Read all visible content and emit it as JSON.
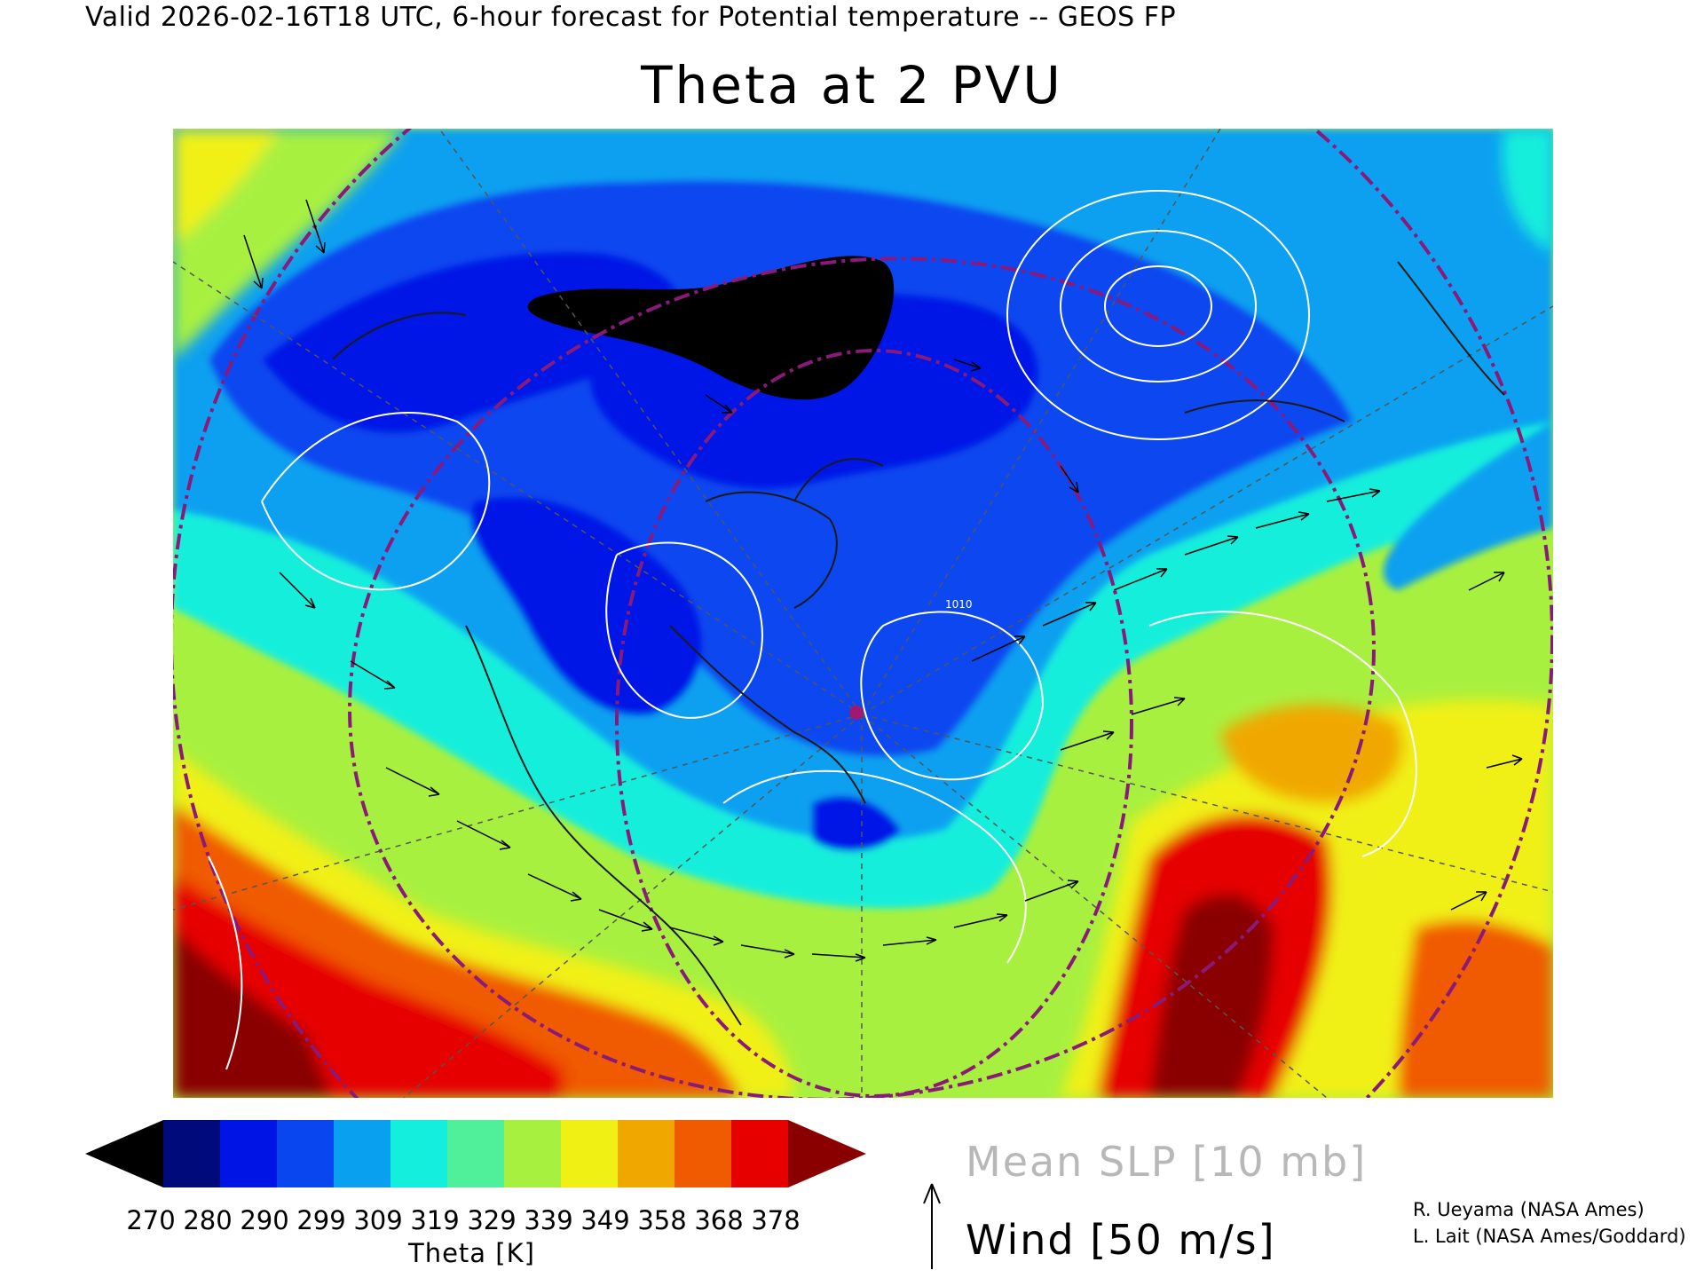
{
  "header": {
    "valid_line": "Valid 2026-02-16T18 UTC, 6-hour forecast for Potential temperature -- GEOS FP",
    "title": "Theta at 2 PVU"
  },
  "colorbar": {
    "labels": [
      "270",
      "280",
      "290",
      "299",
      "309",
      "319",
      "329",
      "339",
      "349",
      "358",
      "368",
      "378"
    ],
    "unit_label": "Theta [K]",
    "colors": [
      "#000000",
      "#000a7a",
      "#0014e6",
      "#0a46f0",
      "#0aa0f0",
      "#14eedc",
      "#50f09a",
      "#a8f040",
      "#f0f014",
      "#f0a800",
      "#f05a00",
      "#e60000",
      "#8a0000"
    ]
  },
  "legend": {
    "slp_label": "Mean SLP [10 mb]",
    "wind_label": "Wind [50 m/s]"
  },
  "credits": {
    "line1": "R. Ueyama (NASA Ames)",
    "line2": "L. Lait (NASA Ames/Goddard)"
  },
  "map": {
    "contour_label": "1010",
    "marker_color": "#a01870",
    "circle_color": "#8a1a7a"
  }
}
